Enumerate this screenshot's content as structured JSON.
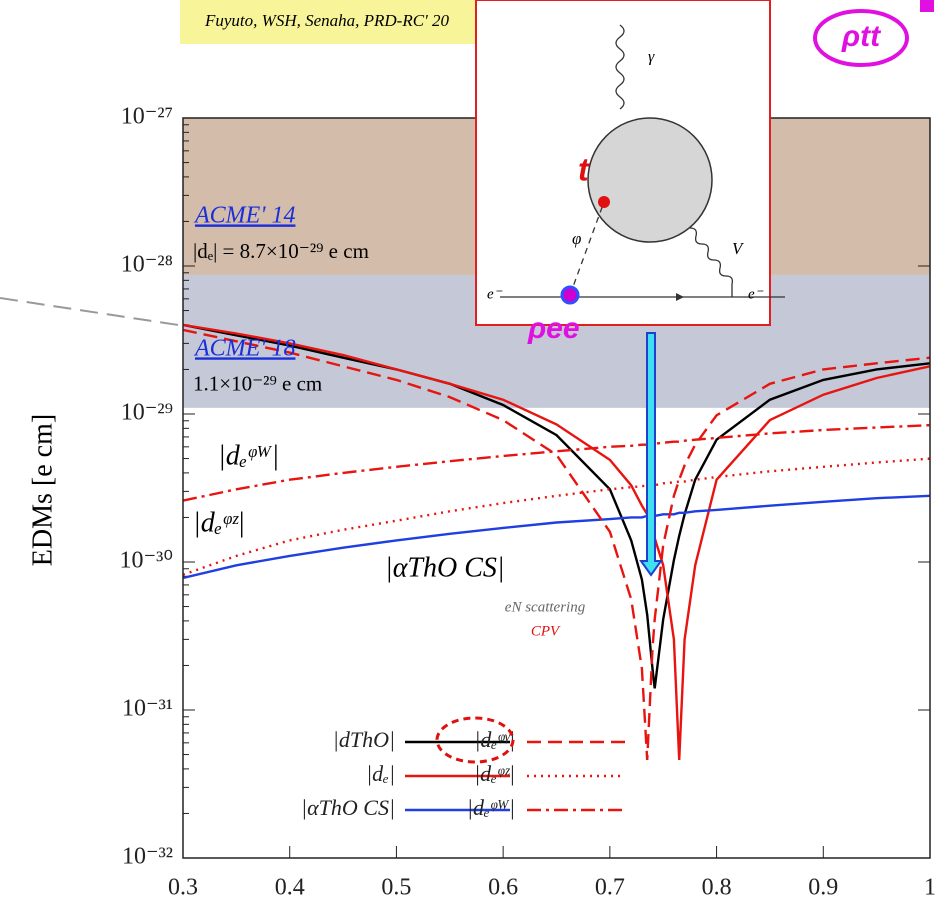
{
  "header": {
    "citation": "Fuyuto, WSH, Senaha, PRD-RC' 20"
  },
  "diagram": {
    "photon": "γ",
    "boson": "V",
    "scalar": "φ",
    "electron_in": "e⁻",
    "electron_out": "e⁻",
    "top": "t",
    "coupling_ee": "ρee",
    "coupling_tt": "ρtt"
  },
  "chart_data": {
    "type": "line",
    "ylabel": "EDMs [e cm]",
    "log_y": true,
    "xlim": [
      0.3,
      1.0
    ],
    "xticks": [
      0.3,
      0.4,
      0.5,
      0.6,
      0.7,
      0.8,
      0.9,
      1
    ],
    "ylim": [
      1e-32,
      1e-27
    ],
    "yticks": [
      {
        "value": 1e-32,
        "label": "10⁻³²"
      },
      {
        "value": 1e-31,
        "label": "10⁻³¹"
      },
      {
        "value": 1e-30,
        "label": "10⁻³⁰"
      },
      {
        "value": 1e-29,
        "label": "10⁻²⁹"
      },
      {
        "value": 1e-28,
        "label": "10⁻²⁸"
      },
      {
        "value": 1e-27,
        "label": "10⁻²⁷"
      }
    ],
    "bands": [
      {
        "name": "ACME' 14",
        "text": "|dₑ| = 8.7×10⁻²⁹ e cm",
        "value": 8.7e-29,
        "color": "#d4bcaa"
      },
      {
        "name": "ACME' 18",
        "text": "1.1×10⁻²⁹ e cm",
        "value": 1.1e-29,
        "color": "#c5c8d7"
      }
    ],
    "annotations": {
      "scattering": "eN scattering",
      "cpv": "CPV"
    },
    "x": [
      0.3,
      0.35,
      0.4,
      0.45,
      0.5,
      0.55,
      0.6,
      0.65,
      0.7,
      0.72,
      0.73,
      0.735,
      0.74,
      0.742,
      0.75,
      0.76,
      0.765,
      0.77,
      0.78,
      0.8,
      0.85,
      0.9,
      0.95,
      1.0
    ],
    "series": [
      {
        "name": "|dThO|",
        "color": "#000000",
        "style": "solid",
        "values": [
          4e-29,
          3.4e-29,
          2.9e-29,
          2.4e-29,
          2e-29,
          1.6e-29,
          1.15e-29,
          7.2e-30,
          3.1e-30,
          1.4e-30,
          7.6e-31,
          4.4e-31,
          1.9e-31,
          1.4e-31,
          4.1e-31,
          1.03e-30,
          1.5e-30,
          2.1e-30,
          3.6e-30,
          6.7e-30,
          1.25e-29,
          1.7e-29,
          2e-29,
          2.2e-29
        ]
      },
      {
        "name": "|dₑ|",
        "color": "#e8140f",
        "style": "solid",
        "values": [
          4e-29,
          3.5e-29,
          3e-29,
          2.5e-29,
          2e-29,
          1.6e-29,
          1.25e-29,
          8.5e-30,
          4.9e-30,
          3.3e-30,
          2.4e-30,
          2.1e-30,
          1.6e-30,
          1.45e-30,
          9.5e-31,
          3e-31,
          4.6e-32,
          3e-31,
          9.5e-31,
          3.6e-30,
          9.1e-30,
          1.35e-29,
          1.75e-29,
          2.1e-29
        ]
      },
      {
        "name": "|αThO CS|",
        "color": "#1f3fe0",
        "style": "solid",
        "values": [
          7.8e-31,
          9.5e-31,
          1.1e-30,
          1.25e-30,
          1.4e-30,
          1.55e-30,
          1.7e-30,
          1.85e-30,
          1.95e-30,
          2e-30,
          2e-30,
          2.05e-30,
          2.05e-30,
          2.05e-30,
          2.1e-30,
          2.1e-30,
          2.15e-30,
          2.15e-30,
          2.2e-30,
          2.25e-30,
          2.4e-30,
          2.55e-30,
          2.7e-30,
          2.8e-30
        ]
      },
      {
        "name": "|dₑᵠᵞ|",
        "color": "#e8140f",
        "style": "dashed",
        "values": [
          3.7e-29,
          3.1e-29,
          2.6e-29,
          2.1e-29,
          1.7e-29,
          1.3e-29,
          9.1e-30,
          5.3e-30,
          1.6e-30,
          5.6e-31,
          1.9e-31,
          4.6e-32,
          2.6e-31,
          4.1e-31,
          1.3e-30,
          2.8e-30,
          3.6e-30,
          4.5e-30,
          6.2e-30,
          9.8e-30,
          1.6e-29,
          2e-29,
          2.2e-29,
          2.4e-29
        ]
      },
      {
        "name": "|dₑᵠᶻ|",
        "color": "#e8140f",
        "style": "dotted",
        "values": [
          8.2e-31,
          1.1e-30,
          1.4e-30,
          1.65e-30,
          1.9e-30,
          2.2e-30,
          2.5e-30,
          2.8e-30,
          3.1e-30,
          3.2e-30,
          3.25e-30,
          3.3e-30,
          3.3e-30,
          3.3e-30,
          3.4e-30,
          3.45e-30,
          3.5e-30,
          3.5e-30,
          3.6e-30,
          3.75e-30,
          4.1e-30,
          4.4e-30,
          4.7e-30,
          5e-30
        ]
      },
      {
        "name": "|dₑᵠᵂ|",
        "color": "#e8140f",
        "style": "dashdot",
        "values": [
          2.6e-30,
          3.1e-30,
          3.6e-30,
          4e-30,
          4.4e-30,
          4.8e-30,
          5.2e-30,
          5.6e-30,
          6e-30,
          6.1e-30,
          6.2e-30,
          6.2e-30,
          6.3e-30,
          6.3e-30,
          6.4e-30,
          6.5e-30,
          6.5e-30,
          6.6e-30,
          6.7e-30,
          6.9e-30,
          7.4e-30,
          7.8e-30,
          8.1e-30,
          8.4e-30
        ]
      }
    ]
  }
}
